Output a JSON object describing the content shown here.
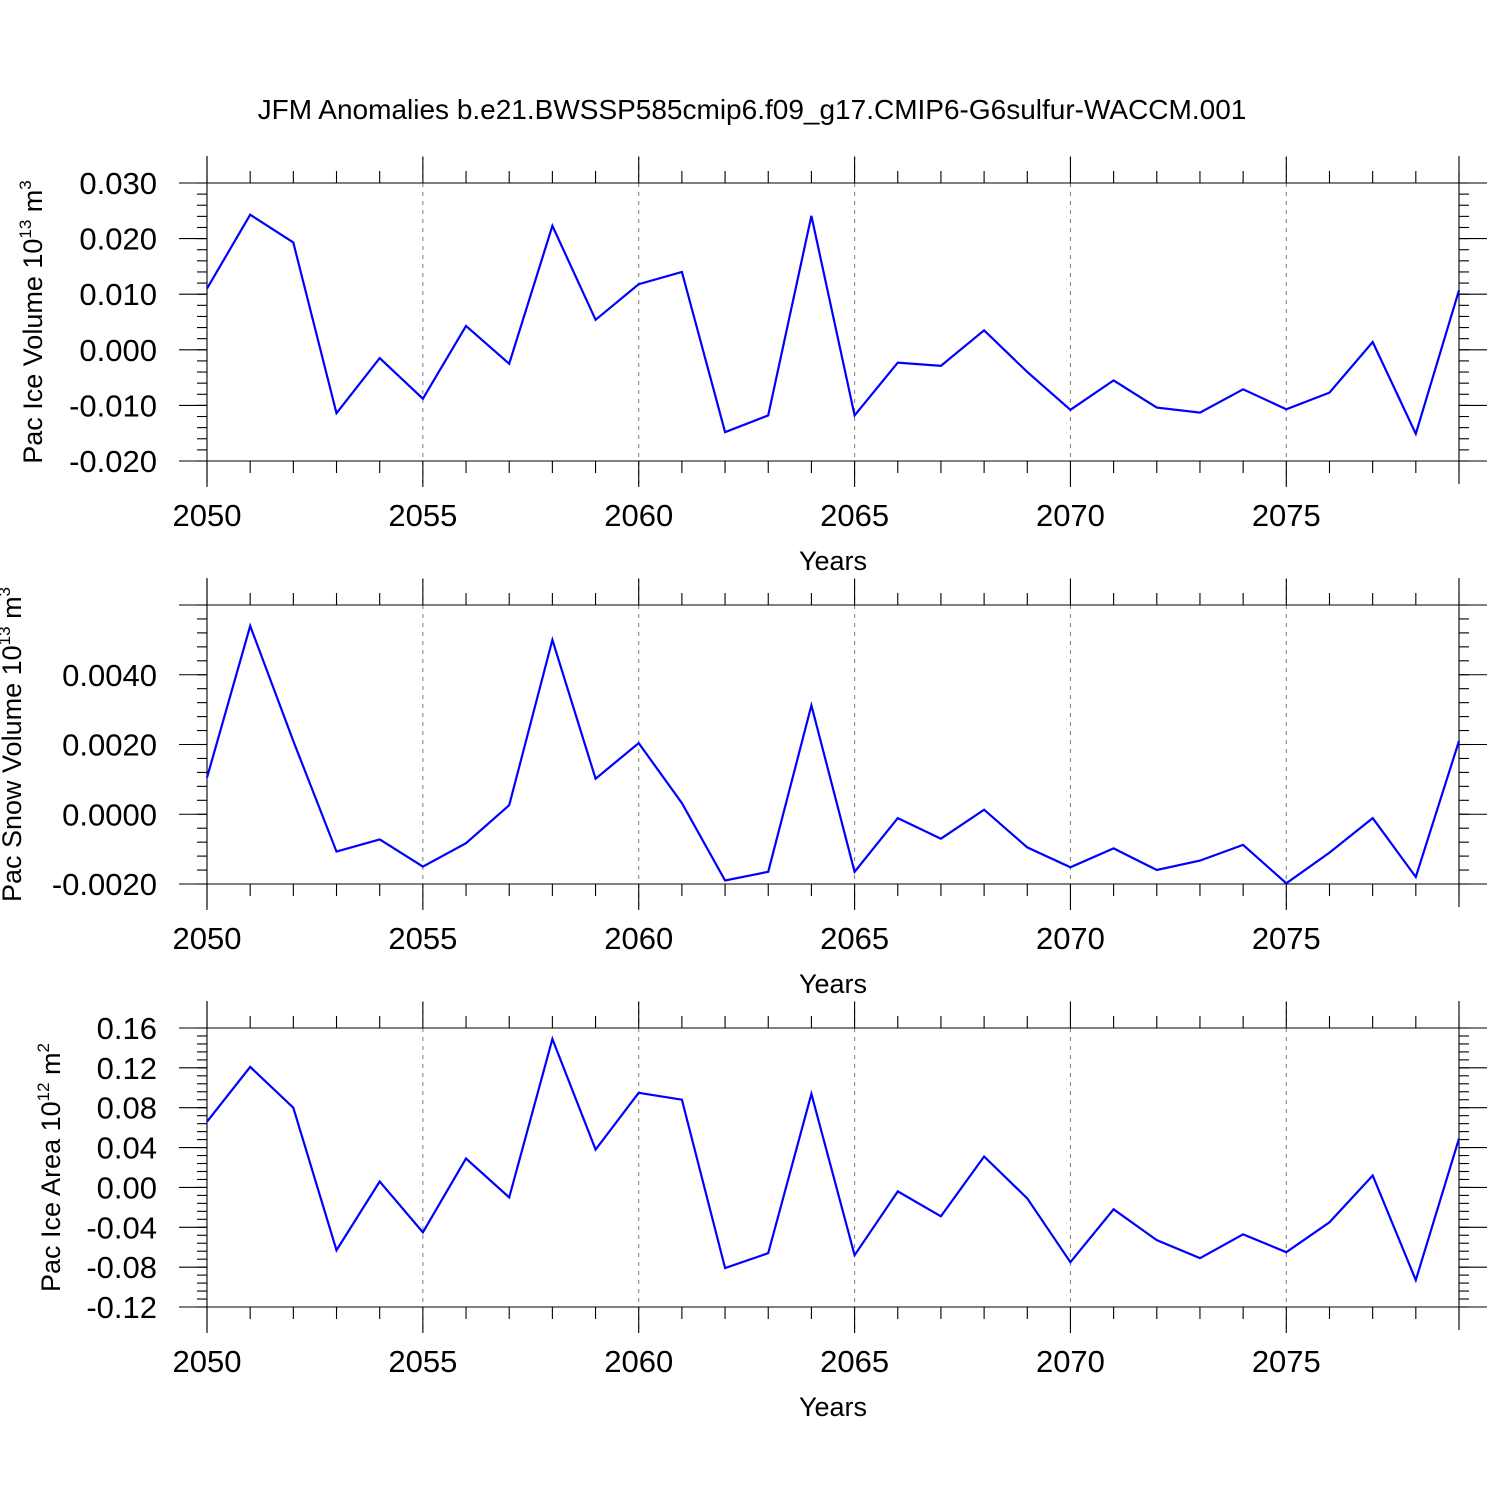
{
  "title": "JFM Anomalies b.e21.BWSSP585cmip6.f09_g17.CMIP6-G6sulfur-WACCM.001",
  "colors": {
    "line": "#0000ff",
    "grid": "#888888",
    "axis": "#000000"
  },
  "chart_data": [
    {
      "type": "line",
      "xlabel": "Years",
      "ylabel": {
        "text": "Pac Ice Volume 10",
        "sup1": "13",
        "mid": " m",
        "sup2": "3"
      },
      "xlim": [
        2050,
        2079
      ],
      "ylim": [
        -0.02,
        0.03
      ],
      "xticks": [
        2050,
        2055,
        2060,
        2065,
        2070,
        2075
      ],
      "xtick_labels": [
        "2050",
        "2055",
        "2060",
        "2065",
        "2070",
        "2075"
      ],
      "yticks": [
        -0.02,
        -0.01,
        0.0,
        0.01,
        0.02,
        0.03
      ],
      "ytick_labels": [
        "-0.020",
        "-0.010",
        "0.000",
        "0.010",
        "0.020",
        "0.030"
      ],
      "y_minor_step": 0.002,
      "grid": "vertical dashed at labeled years",
      "x": [
        2050,
        2051,
        2052,
        2053,
        2054,
        2055,
        2056,
        2057,
        2058,
        2059,
        2060,
        2061,
        2062,
        2063,
        2064,
        2065,
        2066,
        2067,
        2068,
        2069,
        2070,
        2071,
        2072,
        2073,
        2074,
        2075,
        2076,
        2077,
        2078,
        2079
      ],
      "values": [
        0.011,
        0.0243,
        0.0193,
        -0.0114,
        -0.0015,
        -0.0088,
        0.0043,
        -0.0025,
        0.0223,
        0.0054,
        0.0118,
        0.014,
        -0.0148,
        -0.0118,
        0.0241,
        -0.0118,
        -0.0023,
        -0.0029,
        0.0035,
        -0.004,
        -0.0108,
        -0.0055,
        -0.0104,
        -0.0113,
        -0.0071,
        -0.0107,
        -0.0077,
        0.0014,
        -0.0151,
        0.0107
      ]
    },
    {
      "type": "line",
      "xlabel": "Years",
      "ylabel": {
        "text": "Pac Snow Volume 10",
        "sup1": "13",
        "mid": " m",
        "sup2": "3"
      },
      "xlim": [
        2050,
        2079
      ],
      "ylim": [
        -0.002,
        0.006
      ],
      "xticks": [
        2050,
        2055,
        2060,
        2065,
        2070,
        2075
      ],
      "xtick_labels": [
        "2050",
        "2055",
        "2060",
        "2065",
        "2070",
        "2075"
      ],
      "yticks": [
        -0.002,
        0.0,
        0.002,
        0.004
      ],
      "ytick_labels": [
        "-0.0020",
        "0.0000",
        "0.0020",
        "0.0040"
      ],
      "y_minor_step": 0.0004,
      "grid": "vertical dashed at labeled years",
      "x": [
        2050,
        2051,
        2052,
        2053,
        2054,
        2055,
        2056,
        2057,
        2058,
        2059,
        2060,
        2061,
        2062,
        2063,
        2064,
        2065,
        2066,
        2067,
        2068,
        2069,
        2070,
        2071,
        2072,
        2073,
        2074,
        2075,
        2076,
        2077,
        2078,
        2079
      ],
      "values": [
        0.00105,
        0.0054,
        0.0021,
        -0.00107,
        -0.00072,
        -0.0015,
        -0.00083,
        0.00026,
        0.005,
        0.00102,
        0.00204,
        0.00032,
        -0.0019,
        -0.00165,
        0.00312,
        -0.00165,
        -0.00011,
        -0.0007,
        0.00013,
        -0.00095,
        -0.00152,
        -0.00098,
        -0.0016,
        -0.00133,
        -0.00088,
        -0.00198,
        -0.0011,
        -0.00011,
        -0.0018,
        0.0021
      ]
    },
    {
      "type": "line",
      "xlabel": "Years",
      "ylabel": {
        "text": "Pac Ice Area 10",
        "sup1": "12",
        "mid": " m",
        "sup2": "2"
      },
      "xlim": [
        2050,
        2079
      ],
      "ylim": [
        -0.12,
        0.16
      ],
      "xticks": [
        2050,
        2055,
        2060,
        2065,
        2070,
        2075
      ],
      "xtick_labels": [
        "2050",
        "2055",
        "2060",
        "2065",
        "2070",
        "2075"
      ],
      "yticks": [
        -0.12,
        -0.08,
        -0.04,
        0.0,
        0.04,
        0.08,
        0.12,
        0.16
      ],
      "ytick_labels": [
        "-0.12",
        "-0.08",
        "-0.04",
        "0.00",
        "0.04",
        "0.08",
        "0.12",
        "0.16"
      ],
      "y_minor_step": 0.008,
      "grid": "vertical dashed at labeled years",
      "x": [
        2050,
        2051,
        2052,
        2053,
        2054,
        2055,
        2056,
        2057,
        2058,
        2059,
        2060,
        2061,
        2062,
        2063,
        2064,
        2065,
        2066,
        2067,
        2068,
        2069,
        2070,
        2071,
        2072,
        2073,
        2074,
        2075,
        2076,
        2077,
        2078,
        2079
      ],
      "values": [
        0.066,
        0.121,
        0.08,
        -0.063,
        0.006,
        -0.045,
        0.029,
        -0.01,
        0.149,
        0.038,
        0.095,
        0.088,
        -0.081,
        -0.066,
        0.094,
        -0.068,
        -0.004,
        -0.029,
        0.031,
        -0.011,
        -0.075,
        -0.022,
        -0.053,
        -0.071,
        -0.047,
        -0.065,
        -0.035,
        0.012,
        -0.093,
        0.049
      ]
    }
  ]
}
